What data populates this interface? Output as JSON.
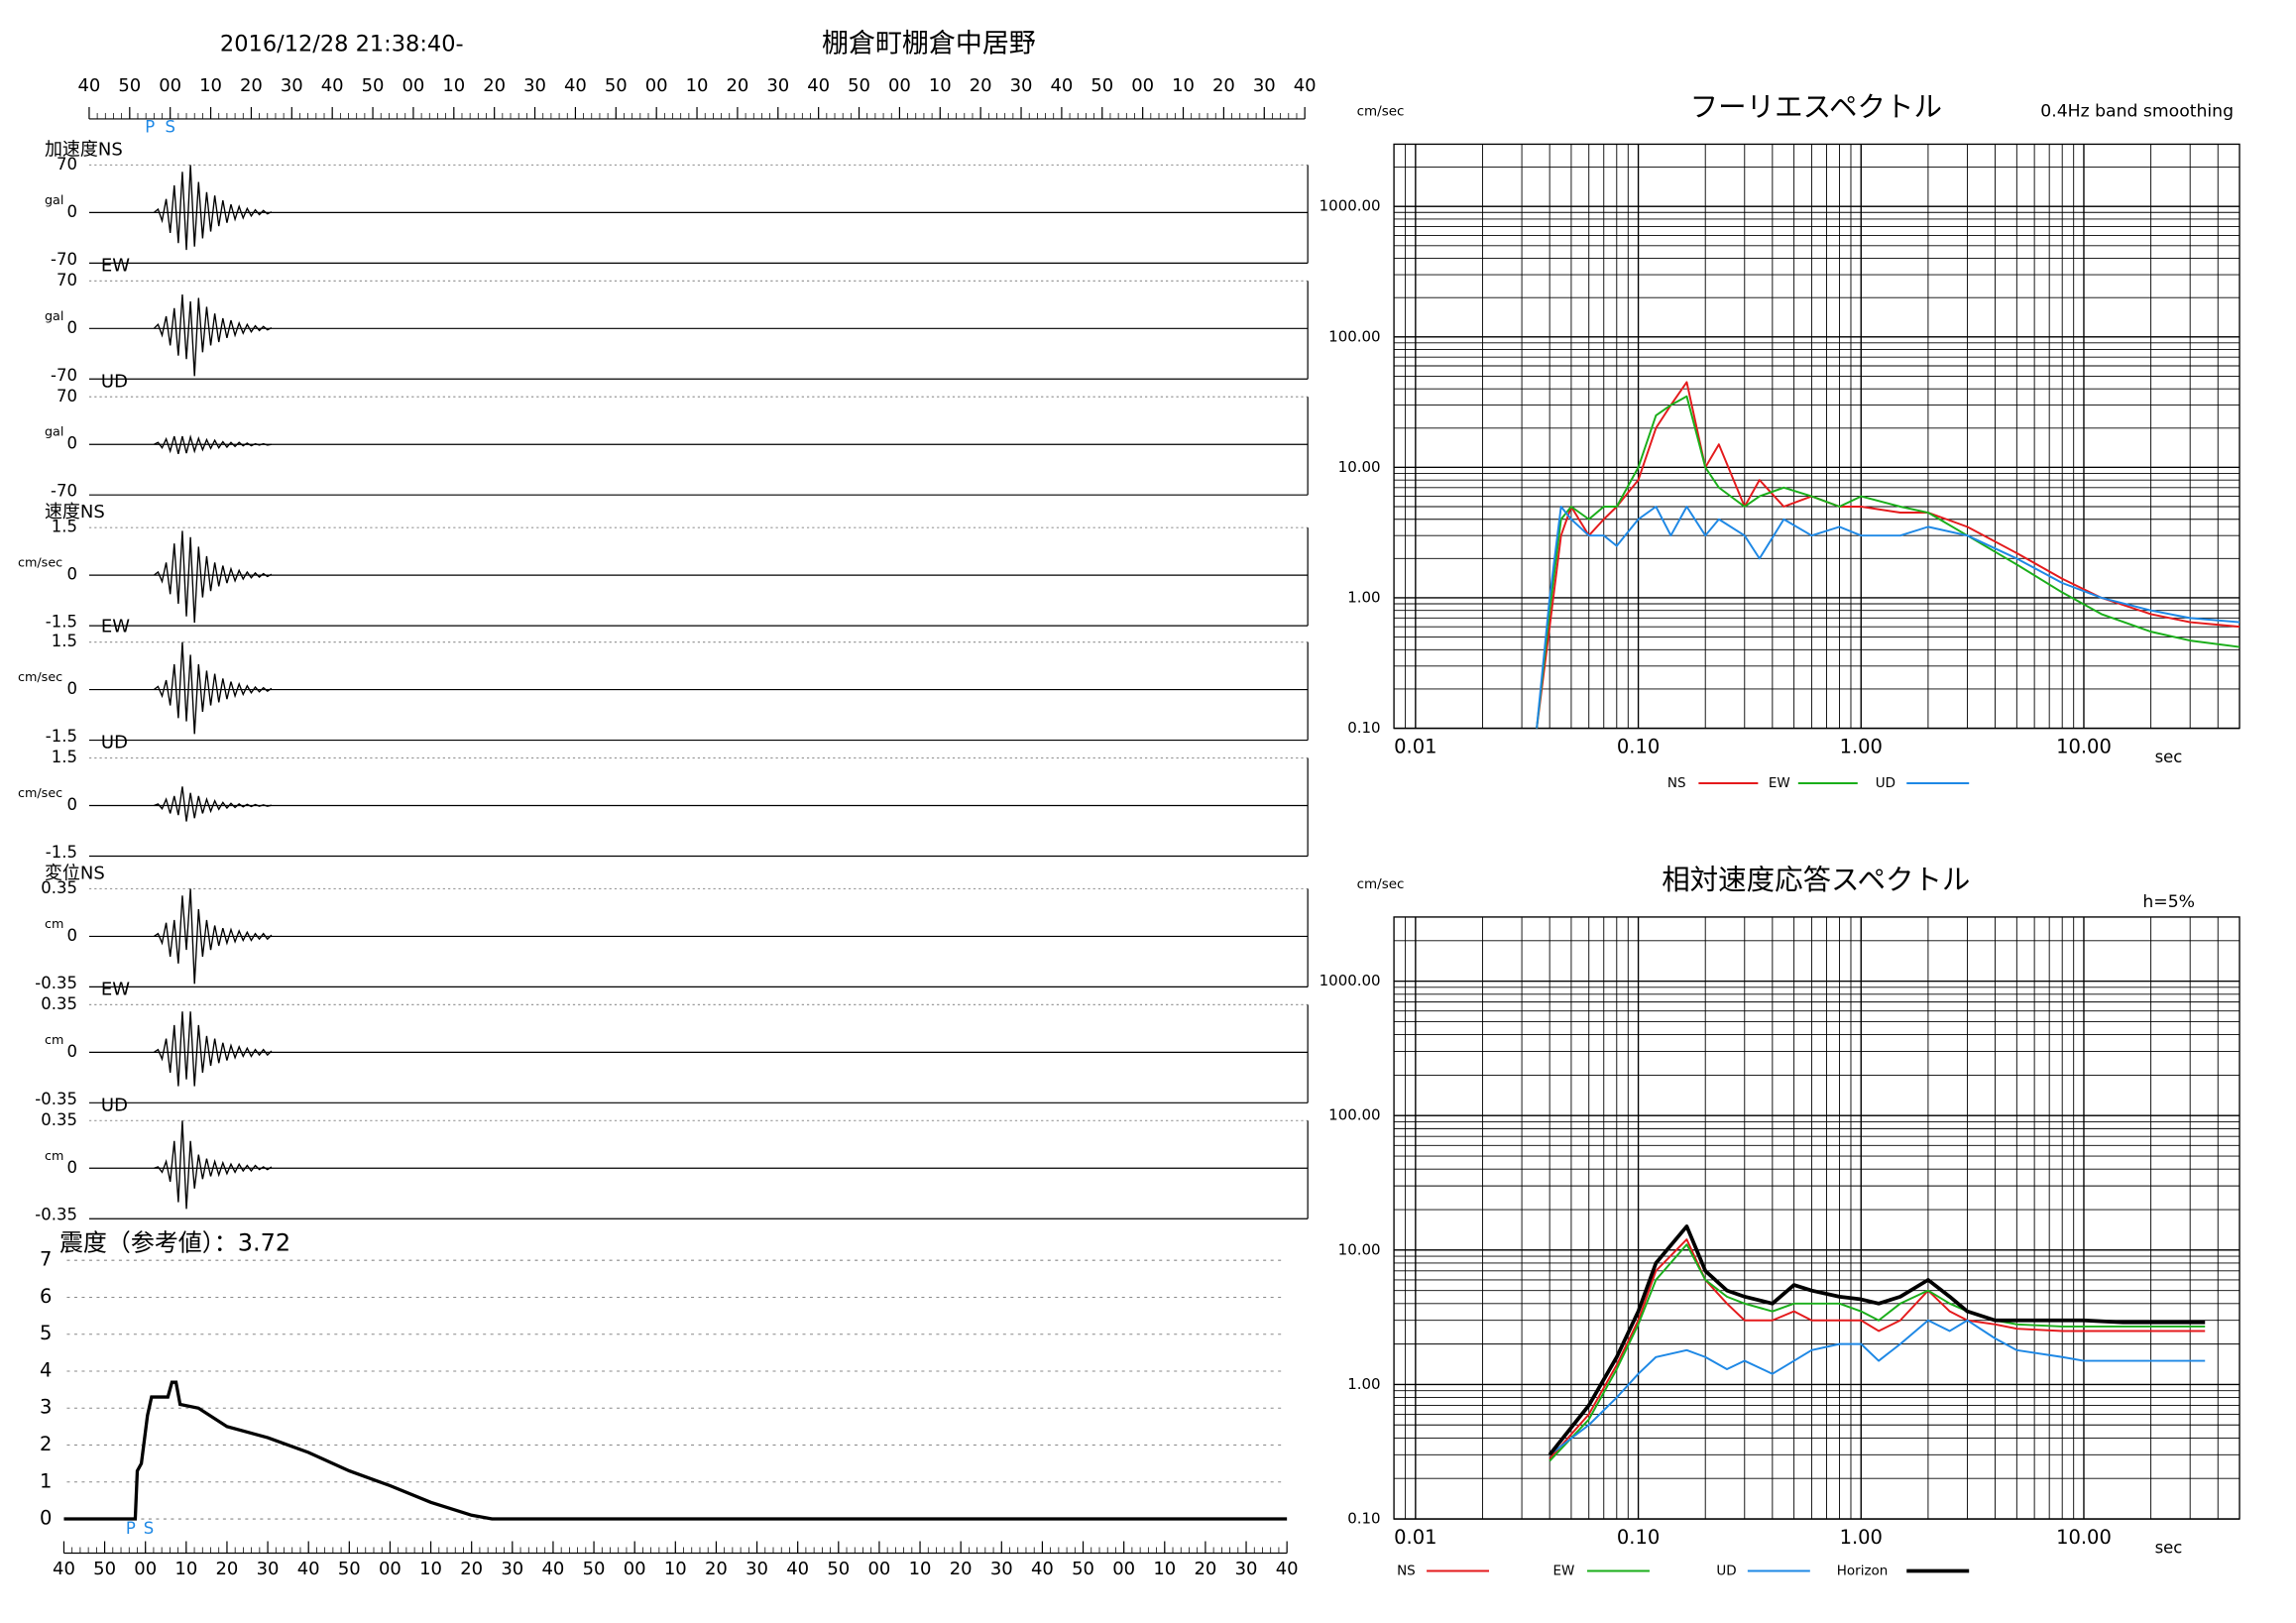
{
  "chart_data": [
    {
      "type": "waveform",
      "title": "2016/12/28 21:38:40-",
      "subtitle": "棚倉町棚倉中居野",
      "xlim": [
        0,
        300
      ],
      "xticks": [
        {
          "value": 0,
          "label": "40"
        },
        {
          "value": 10,
          "label": "50"
        },
        {
          "value": 20,
          "label": "00"
        },
        {
          "value": 30,
          "label": "10"
        },
        {
          "value": 40,
          "label": "20"
        },
        {
          "value": 50,
          "label": "30"
        },
        {
          "value": 60,
          "label": "40"
        },
        {
          "value": 70,
          "label": "50"
        },
        {
          "value": 80,
          "label": "00"
        },
        {
          "value": 90,
          "label": "10"
        },
        {
          "value": 100,
          "label": "20"
        },
        {
          "value": 110,
          "label": "30"
        },
        {
          "value": 120,
          "label": "40"
        },
        {
          "value": 130,
          "label": "50"
        },
        {
          "value": 140,
          "label": "00"
        },
        {
          "value": 150,
          "label": "10"
        },
        {
          "value": 160,
          "label": "20"
        },
        {
          "value": 170,
          "label": "30"
        },
        {
          "value": 180,
          "label": "40"
        },
        {
          "value": 190,
          "label": "50"
        },
        {
          "value": 200,
          "label": "00"
        },
        {
          "value": 210,
          "label": "10"
        },
        {
          "value": 220,
          "label": "20"
        },
        {
          "value": 230,
          "label": "30"
        },
        {
          "value": 240,
          "label": "40"
        },
        {
          "value": 250,
          "label": "50"
        },
        {
          "value": 260,
          "label": "00"
        },
        {
          "value": 270,
          "label": "10"
        },
        {
          "value": 280,
          "label": "20"
        },
        {
          "value": 290,
          "label": "30"
        },
        {
          "value": 300,
          "label": "40"
        }
      ],
      "picks": [
        {
          "label": "P",
          "x": 15
        },
        {
          "label": "S",
          "x": 20
        }
      ],
      "x": [
        16,
        17,
        18,
        19,
        20,
        21,
        22,
        23,
        24,
        25,
        26,
        27,
        28,
        29,
        30,
        31,
        32,
        33,
        34,
        35,
        36,
        37,
        38,
        39,
        40,
        41,
        42,
        43,
        44,
        45
      ],
      "panels": [
        {
          "label": "加速度NS",
          "unit": "gal",
          "ylim": [
            -70,
            70
          ],
          "yticks": [
            70,
            0,
            -70
          ],
          "values": [
            0,
            5,
            -12,
            20,
            -30,
            40,
            -45,
            60,
            -55,
            70,
            -50,
            45,
            -38,
            30,
            -28,
            25,
            -20,
            18,
            -15,
            12,
            -10,
            9,
            -8,
            6,
            -5,
            4,
            -3,
            3,
            -2,
            1
          ]
        },
        {
          "label": "EW",
          "unit": "gal",
          "ylim": [
            -70,
            70
          ],
          "yticks": [
            70,
            0,
            -70
          ],
          "values": [
            0,
            6,
            -10,
            18,
            -25,
            30,
            -40,
            50,
            -45,
            40,
            -70,
            45,
            -35,
            32,
            -25,
            22,
            -20,
            15,
            -14,
            12,
            -10,
            8,
            -7,
            6,
            -5,
            4,
            -3,
            3,
            -2,
            1
          ]
        },
        {
          "label": "UD",
          "unit": "gal",
          "ylim": [
            -70,
            70
          ],
          "yticks": [
            70,
            0,
            -70
          ],
          "values": [
            0,
            3,
            -5,
            8,
            -10,
            12,
            -14,
            12,
            -13,
            11,
            -10,
            9,
            -8,
            7,
            -6,
            6,
            -5,
            4,
            -4,
            3,
            -3,
            3,
            -2,
            2,
            -2,
            1,
            -1,
            1,
            -1,
            0
          ]
        },
        {
          "label": "速度NS",
          "unit": "cm/sec",
          "ylim": [
            -1.5,
            1.5
          ],
          "yticks": [
            1.5,
            0,
            -1.5
          ],
          "values": [
            0,
            0.1,
            -0.2,
            0.4,
            -0.6,
            1.0,
            -0.9,
            1.4,
            -1.3,
            1.2,
            -1.5,
            0.9,
            -0.7,
            0.6,
            -0.5,
            0.4,
            -0.35,
            0.3,
            -0.25,
            0.2,
            -0.18,
            0.15,
            -0.12,
            0.1,
            -0.08,
            0.07,
            -0.06,
            0.05,
            -0.04,
            0.03
          ]
        },
        {
          "label": "EW",
          "unit": "cm/sec",
          "ylim": [
            -1.5,
            1.5
          ],
          "yticks": [
            1.5,
            0,
            -1.5
          ],
          "values": [
            0,
            0.1,
            -0.2,
            0.3,
            -0.5,
            0.8,
            -0.9,
            1.5,
            -1.0,
            1.1,
            -1.4,
            0.8,
            -0.7,
            0.6,
            -0.5,
            0.5,
            -0.4,
            0.35,
            -0.3,
            0.25,
            -0.2,
            0.18,
            -0.15,
            0.12,
            -0.1,
            0.08,
            -0.07,
            0.06,
            -0.05,
            0.04
          ]
        },
        {
          "label": "UD",
          "unit": "cm/sec",
          "ylim": [
            -1.5,
            1.5
          ],
          "yticks": [
            1.5,
            0,
            -1.5
          ],
          "values": [
            0,
            0.05,
            -0.1,
            0.2,
            -0.25,
            0.3,
            -0.3,
            0.6,
            -0.5,
            0.4,
            -0.4,
            0.3,
            -0.25,
            0.2,
            -0.18,
            0.15,
            -0.12,
            0.1,
            -0.08,
            0.07,
            -0.06,
            0.05,
            -0.04,
            0.04,
            -0.03,
            0.03,
            -0.02,
            0.02,
            -0.02,
            0.01
          ]
        },
        {
          "label": "変位NS",
          "unit": "cm",
          "ylim": [
            -0.35,
            0.35
          ],
          "yticks": [
            0.35,
            0,
            -0.35
          ],
          "values": [
            0,
            0.02,
            -0.05,
            0.1,
            -0.15,
            0.12,
            -0.2,
            0.3,
            -0.1,
            0.35,
            -0.35,
            0.2,
            -0.15,
            0.12,
            -0.1,
            0.08,
            -0.07,
            0.06,
            -0.05,
            0.05,
            -0.04,
            0.04,
            -0.03,
            0.03,
            -0.03,
            0.02,
            -0.02,
            0.02,
            -0.02,
            0.01
          ]
        },
        {
          "label": "EW",
          "unit": "cm",
          "ylim": [
            -0.35,
            0.35
          ],
          "yticks": [
            0.35,
            0,
            -0.35
          ],
          "values": [
            0,
            0.02,
            -0.05,
            0.1,
            -0.15,
            0.2,
            -0.25,
            0.3,
            -0.2,
            0.3,
            -0.25,
            0.2,
            -0.15,
            0.12,
            -0.1,
            0.1,
            -0.08,
            0.07,
            -0.06,
            0.05,
            -0.04,
            0.04,
            -0.03,
            0.03,
            -0.03,
            0.02,
            -0.02,
            0.02,
            -0.02,
            0.01
          ]
        },
        {
          "label": "UD",
          "unit": "cm",
          "ylim": [
            -0.35,
            0.35
          ],
          "yticks": [
            0.35,
            0,
            -0.35
          ],
          "values": [
            0,
            0.01,
            -0.03,
            0.05,
            -0.1,
            0.2,
            -0.25,
            0.35,
            -0.3,
            0.2,
            -0.15,
            0.1,
            -0.08,
            0.07,
            -0.06,
            0.05,
            -0.05,
            0.04,
            -0.04,
            0.03,
            -0.03,
            0.03,
            -0.02,
            0.02,
            -0.02,
            0.02,
            -0.01,
            0.01,
            -0.01,
            0.01
          ]
        }
      ]
    },
    {
      "type": "line",
      "title": "震度（参考値）：3.72",
      "xlim": [
        0,
        300
      ],
      "xticks": [
        {
          "value": 0,
          "label": "40"
        },
        {
          "value": 10,
          "label": "50"
        },
        {
          "value": 20,
          "label": "00"
        },
        {
          "value": 30,
          "label": "10"
        },
        {
          "value": 40,
          "label": "20"
        },
        {
          "value": 50,
          "label": "30"
        },
        {
          "value": 60,
          "label": "40"
        },
        {
          "value": 70,
          "label": "50"
        },
        {
          "value": 80,
          "label": "00"
        },
        {
          "value": 90,
          "label": "10"
        },
        {
          "value": 100,
          "label": "20"
        },
        {
          "value": 110,
          "label": "30"
        },
        {
          "value": 120,
          "label": "40"
        },
        {
          "value": 130,
          "label": "50"
        },
        {
          "value": 140,
          "label": "00"
        },
        {
          "value": 150,
          "label": "10"
        },
        {
          "value": 160,
          "label": "20"
        },
        {
          "value": 170,
          "label": "30"
        },
        {
          "value": 180,
          "label": "40"
        },
        {
          "value": 190,
          "label": "50"
        },
        {
          "value": 200,
          "label": "00"
        },
        {
          "value": 210,
          "label": "10"
        },
        {
          "value": 220,
          "label": "20"
        },
        {
          "value": 230,
          "label": "30"
        },
        {
          "value": 240,
          "label": "40"
        },
        {
          "value": 250,
          "label": "50"
        },
        {
          "value": 260,
          "label": "00"
        },
        {
          "value": 270,
          "label": "10"
        },
        {
          "value": 280,
          "label": "20"
        },
        {
          "value": 290,
          "label": "30"
        },
        {
          "value": 300,
          "label": "40"
        }
      ],
      "ylim": [
        0,
        7
      ],
      "yticks": [
        0,
        1,
        2,
        3,
        4,
        5,
        6,
        7
      ],
      "grid": true,
      "picks": [
        {
          "label": "P",
          "x": 16.4
        },
        {
          "label": "S",
          "x": 20.8
        }
      ],
      "x": [
        0,
        17.5,
        18,
        19,
        20.5,
        21.5,
        25.5,
        26.5,
        27.5,
        28.5,
        33,
        40,
        50,
        60,
        70,
        80,
        90,
        100,
        105,
        300
      ],
      "values": [
        0,
        0,
        1.3,
        1.5,
        2.8,
        3.3,
        3.3,
        3.7,
        3.7,
        3.1,
        3.0,
        2.5,
        2.2,
        1.8,
        1.3,
        0.9,
        0.45,
        0.1,
        0,
        0
      ],
      "color": "#000000"
    },
    {
      "type": "line",
      "title": "フーリエスペクトル",
      "subtitle": "0.4Hz band smoothing",
      "y_label": "cm/sec",
      "x_label": "sec",
      "log_x": true,
      "log_y": true,
      "grid": true,
      "xlim": [
        0.008,
        50
      ],
      "ylim": [
        0.1,
        3000
      ],
      "xticks": [
        {
          "value": 0.01,
          "label": "0.01"
        },
        {
          "value": 0.1,
          "label": "0.10"
        },
        {
          "value": 1,
          "label": "1.00"
        },
        {
          "value": 10,
          "label": "10.00"
        }
      ],
      "yticks": [
        {
          "value": 0.1,
          "label": "0.10"
        },
        {
          "value": 1,
          "label": "1.00"
        },
        {
          "value": 10,
          "label": "10.00"
        },
        {
          "value": 100,
          "label": "100.00"
        },
        {
          "value": 1000,
          "label": "1000.00"
        }
      ],
      "x": [
        0.035,
        0.04,
        0.045,
        0.05,
        0.06,
        0.07,
        0.08,
        0.1,
        0.12,
        0.14,
        0.165,
        0.2,
        0.23,
        0.3,
        0.35,
        0.45,
        0.6,
        0.8,
        1,
        1.5,
        2,
        3,
        5,
        8,
        12,
        20,
        30,
        50
      ],
      "series": [
        {
          "name": "NS",
          "color": "#e41a1c",
          "values": [
            0.1,
            0.6,
            3,
            5,
            3,
            4,
            5,
            8,
            20,
            30,
            45,
            10,
            15,
            5,
            8,
            5,
            6,
            5,
            5,
            4.5,
            4.5,
            3.5,
            2.2,
            1.4,
            1,
            0.75,
            0.65,
            0.6
          ]
        },
        {
          "name": "EW",
          "color": "#1aae1a",
          "values": [
            0.1,
            0.8,
            4,
            5,
            4,
            5,
            5,
            10,
            25,
            30,
            35,
            10,
            7,
            5,
            6,
            7,
            6,
            5,
            6,
            5,
            4.5,
            3,
            1.8,
            1.1,
            0.75,
            0.55,
            0.47,
            0.42
          ]
        },
        {
          "name": "UD",
          "color": "#1e88e5",
          "values": [
            0.1,
            1,
            5,
            4,
            3,
            3,
            2.5,
            4,
            5,
            3,
            5,
            3,
            4,
            3,
            2,
            4,
            3,
            3.5,
            3,
            3,
            3.5,
            3,
            2,
            1.3,
            1,
            0.8,
            0.7,
            0.65
          ]
        }
      ]
    },
    {
      "type": "line",
      "title": "相対速度応答スペクトル",
      "subtitle": "h=5%",
      "y_label": "cm/sec",
      "x_label": "sec",
      "log_x": true,
      "log_y": true,
      "grid": true,
      "xlim": [
        0.008,
        50
      ],
      "ylim": [
        0.1,
        3000
      ],
      "xticks": [
        {
          "value": 0.01,
          "label": "0.01"
        },
        {
          "value": 0.1,
          "label": "0.10"
        },
        {
          "value": 1,
          "label": "1.00"
        },
        {
          "value": 10,
          "label": "10.00"
        }
      ],
      "yticks": [
        {
          "value": 0.1,
          "label": "0.10"
        },
        {
          "value": 1,
          "label": "1.00"
        },
        {
          "value": 10,
          "label": "10.00"
        },
        {
          "value": 100,
          "label": "100.00"
        },
        {
          "value": 1000,
          "label": "1000.00"
        }
      ],
      "x": [
        0.04,
        0.06,
        0.08,
        0.1,
        0.12,
        0.165,
        0.2,
        0.25,
        0.3,
        0.4,
        0.5,
        0.6,
        0.8,
        1,
        1.2,
        1.5,
        2,
        2.5,
        3,
        4,
        5,
        8,
        10,
        15,
        20,
        35
      ],
      "series": [
        {
          "name": "NS",
          "color": "#e41a1c",
          "values": [
            0.28,
            0.6,
            1.4,
            3,
            7,
            12,
            6,
            4,
            3,
            3,
            3.5,
            3,
            3,
            3,
            2.5,
            3,
            5,
            3.5,
            3,
            2.8,
            2.6,
            2.5,
            2.5,
            2.5,
            2.5,
            2.5
          ]
        },
        {
          "name": "EW",
          "color": "#1aae1a",
          "values": [
            0.27,
            0.55,
            1.3,
            2.8,
            6,
            11,
            6,
            4.5,
            4,
            3.5,
            4,
            4,
            4,
            3.5,
            3,
            4,
            5,
            4,
            3.5,
            3,
            2.8,
            2.7,
            2.7,
            2.7,
            2.7,
            2.7
          ]
        },
        {
          "name": "UD",
          "color": "#1e88e5",
          "values": [
            0.3,
            0.5,
            0.8,
            1.2,
            1.6,
            1.8,
            1.6,
            1.3,
            1.5,
            1.2,
            1.5,
            1.8,
            2,
            2,
            1.5,
            2,
            3,
            2.5,
            3,
            2.2,
            1.8,
            1.6,
            1.5,
            1.5,
            1.5,
            1.5
          ]
        },
        {
          "name": "Horizon",
          "color": "#000000",
          "values": [
            0.3,
            0.7,
            1.6,
            3.5,
            8,
            15,
            7,
            5,
            4.5,
            4,
            5.5,
            5,
            4.5,
            4.3,
            4,
            4.5,
            6,
            4.5,
            3.5,
            3,
            3,
            3,
            3,
            2.9,
            2.9,
            2.9
          ]
        }
      ]
    }
  ]
}
